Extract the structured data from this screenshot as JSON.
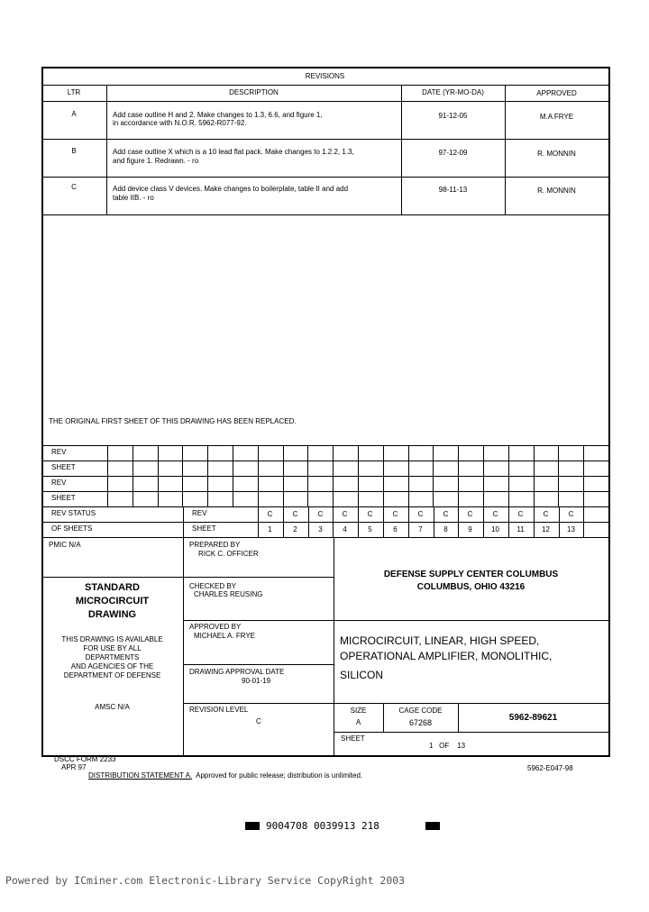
{
  "revisions": {
    "title": "REVISIONS",
    "headers": {
      "ltr": "LTR",
      "description": "DESCRIPTION",
      "date": "DATE (YR-MO-DA)",
      "approved": "APPROVED"
    },
    "rows": [
      {
        "ltr": "A",
        "desc1": "Add case outline H and 2.  Make changes to 1.3, 6.6, and figure 1,",
        "desc2": "in accordance with N.O.R. 5962-R077-92.",
        "date": "91-12-05",
        "approved": "M.A FRYE"
      },
      {
        "ltr": "B",
        "desc1": "Add case outline X which is a 10 lead flat pack.  Make changes to 1.2.2, 1.3,",
        "desc2": "and figure 1.  Redrawn. - ro",
        "date": "97-12-09",
        "approved": "R. MONNIN"
      },
      {
        "ltr": "C",
        "desc1": "Add device class V devices.  Make changes to boilerplate, table II and add",
        "desc2": "table IIB. - ro",
        "date": "98-11-13",
        "approved": "R. MONNIN"
      }
    ]
  },
  "replaced_note": "THE ORIGINAL FIRST SHEET OF THIS DRAWING HAS BEEN REPLACED.",
  "status_grid": {
    "row_labels": [
      "REV",
      "SHEET",
      "REV",
      "SHEET"
    ],
    "rev_status": "REV STATUS",
    "of_sheets": "OF SHEETS",
    "rev_label": "REV",
    "sheet_label": "SHEET",
    "revs": [
      "C",
      "C",
      "C",
      "C",
      "C",
      "C",
      "C",
      "C",
      "C",
      "C",
      "C",
      "C",
      "C"
    ],
    "sheets": [
      "1",
      "2",
      "3",
      "4",
      "5",
      "6",
      "7",
      "8",
      "9",
      "10",
      "11",
      "12",
      "13"
    ]
  },
  "title_block": {
    "pmic": "PMIC N/A",
    "standard": [
      "STANDARD",
      "MICROCIRCUIT",
      "DRAWING"
    ],
    "availability": [
      "THIS DRAWING IS AVAILABLE",
      "FOR USE BY ALL",
      "DEPARTMENTS",
      "AND AGENCIES OF THE",
      "DEPARTMENT OF DEFENSE"
    ],
    "amsc": "AMSC N/A",
    "prepared_label": "PREPARED BY",
    "prepared_name": "RICK C. OFFICER",
    "checked_label": "CHECKED BY",
    "checked_name": "CHARLES REUSING",
    "approved_label": "APPROVED BY",
    "approved_name": "MICHAEL A. FRYE",
    "approval_date_label": "DRAWING APPROVAL DATE",
    "approval_date": "90-01-19",
    "revision_level_label": "REVISION LEVEL",
    "revision_level": "C",
    "agency": [
      "DEFENSE SUPPLY CENTER COLUMBUS",
      "COLUMBUS, OHIO  43216"
    ],
    "title": [
      "MICROCIRCUIT, LINEAR, HIGH SPEED,",
      "OPERATIONAL AMPLIFIER, MONOLITHIC,",
      "SILICON"
    ],
    "size_label": "SIZE",
    "size": "A",
    "cage_label": "CAGE CODE",
    "cage": "67268",
    "drawing_number": "5962-89621",
    "sheet_label": "SHEET",
    "sheet": "1   OF    13"
  },
  "footer": {
    "form": "DSCC FORM 2233",
    "form_date": "APR 97",
    "distribution_label": "DISTRIBUTION STATEMENT A.",
    "distribution_text": "Approved for public release; distribution is unlimited.",
    "doc_code": "5962-E047-98",
    "barcode": "9004708 0039913 218",
    "powered_by": "Powered by ICminer.com Electronic-Library Service CopyRight 2003"
  }
}
